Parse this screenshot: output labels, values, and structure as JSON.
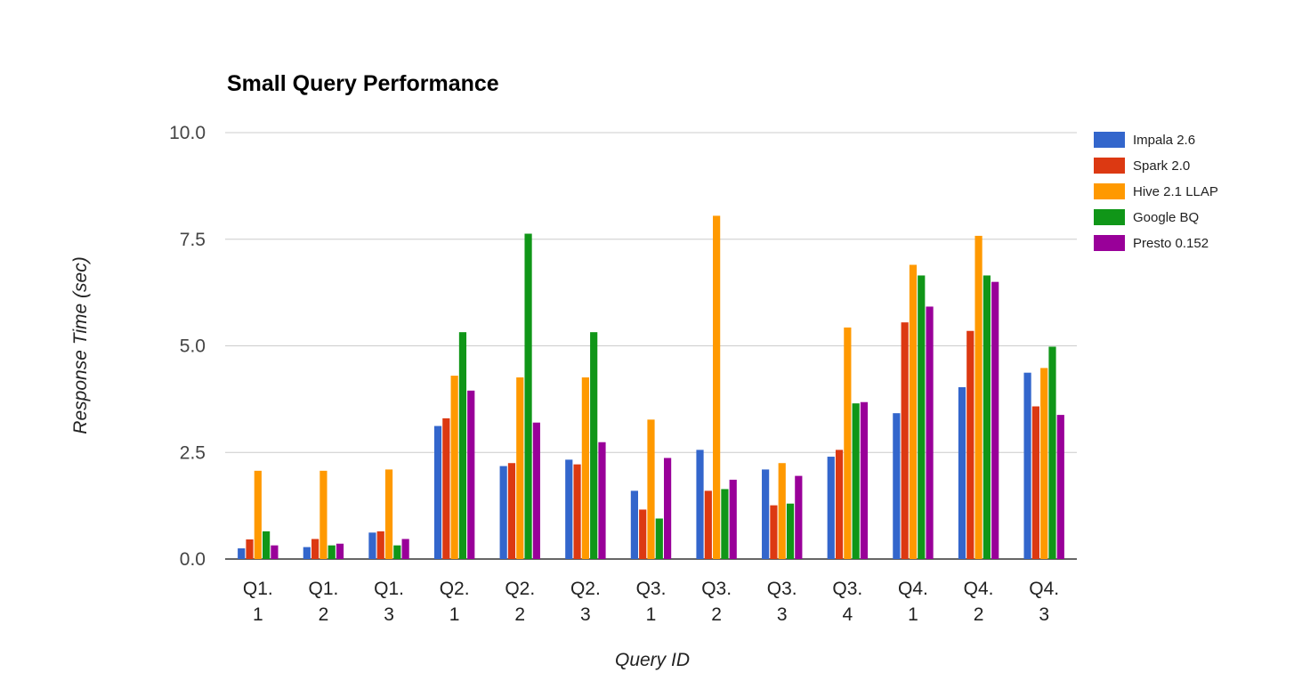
{
  "chart_data": {
    "type": "bar",
    "title": "Small Query Performance",
    "xlabel": "Query ID",
    "ylabel": "Response Time (sec)",
    "ylim": [
      0,
      10
    ],
    "yticks": [
      "0.0",
      "2.5",
      "5.0",
      "7.5",
      "10.0"
    ],
    "grid": true,
    "legend_position": "right",
    "categories": [
      [
        "Q1.",
        "1"
      ],
      [
        "Q1.",
        "2"
      ],
      [
        "Q1.",
        "3"
      ],
      [
        "Q2.",
        "1"
      ],
      [
        "Q2.",
        "2"
      ],
      [
        "Q2.",
        "3"
      ],
      [
        "Q3.",
        "1"
      ],
      [
        "Q3.",
        "2"
      ],
      [
        "Q3.",
        "3"
      ],
      [
        "Q3.",
        "4"
      ],
      [
        "Q4.",
        "1"
      ],
      [
        "Q4.",
        "2"
      ],
      [
        "Q4.",
        "3"
      ]
    ],
    "series": [
      {
        "name": "Impala 2.6",
        "color": "#3366cc",
        "values": [
          0.25,
          0.28,
          0.62,
          3.12,
          2.18,
          2.33,
          1.6,
          2.56,
          2.1,
          2.4,
          3.42,
          4.03,
          4.37
        ]
      },
      {
        "name": "Spark 2.0",
        "color": "#dc3912",
        "values": [
          0.46,
          0.47,
          0.65,
          3.3,
          2.25,
          2.22,
          1.16,
          1.6,
          1.26,
          2.56,
          5.55,
          5.35,
          3.58
        ]
      },
      {
        "name": "Hive 2.1 LLAP",
        "color": "#ff9900",
        "values": [
          2.07,
          2.07,
          2.1,
          4.3,
          4.26,
          4.26,
          3.27,
          8.05,
          2.25,
          5.43,
          6.9,
          7.58,
          4.48
        ]
      },
      {
        "name": "Google BQ",
        "color": "#109618",
        "values": [
          0.65,
          0.32,
          0.32,
          5.32,
          7.63,
          5.32,
          0.95,
          1.64,
          1.3,
          3.65,
          6.65,
          6.65,
          4.98
        ]
      },
      {
        "name": "Presto 0.152",
        "color": "#990099",
        "values": [
          0.32,
          0.36,
          0.47,
          3.95,
          3.2,
          2.74,
          2.37,
          1.86,
          1.95,
          3.68,
          5.92,
          6.5,
          3.38
        ]
      }
    ]
  }
}
